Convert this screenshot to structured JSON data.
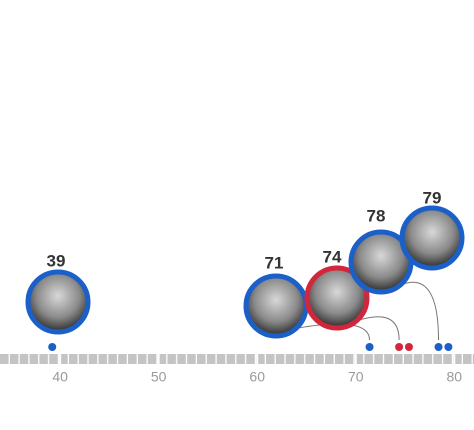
{
  "chart_data": {
    "type": "dot",
    "x": [
      39.2,
      71.4,
      74.4,
      75.4,
      78.4,
      79.4
    ],
    "value_labels": [
      "39",
      "71",
      "74",
      null,
      "78",
      "79"
    ],
    "colors": [
      "#1b5fc9",
      "#1b5fc9",
      "#d3263a",
      "#d3263a",
      "#1b5fc9",
      "#1b5fc9"
    ],
    "xlim": [
      33.9,
      82
    ],
    "xticks": [
      40,
      50,
      60,
      70,
      80
    ]
  }
}
